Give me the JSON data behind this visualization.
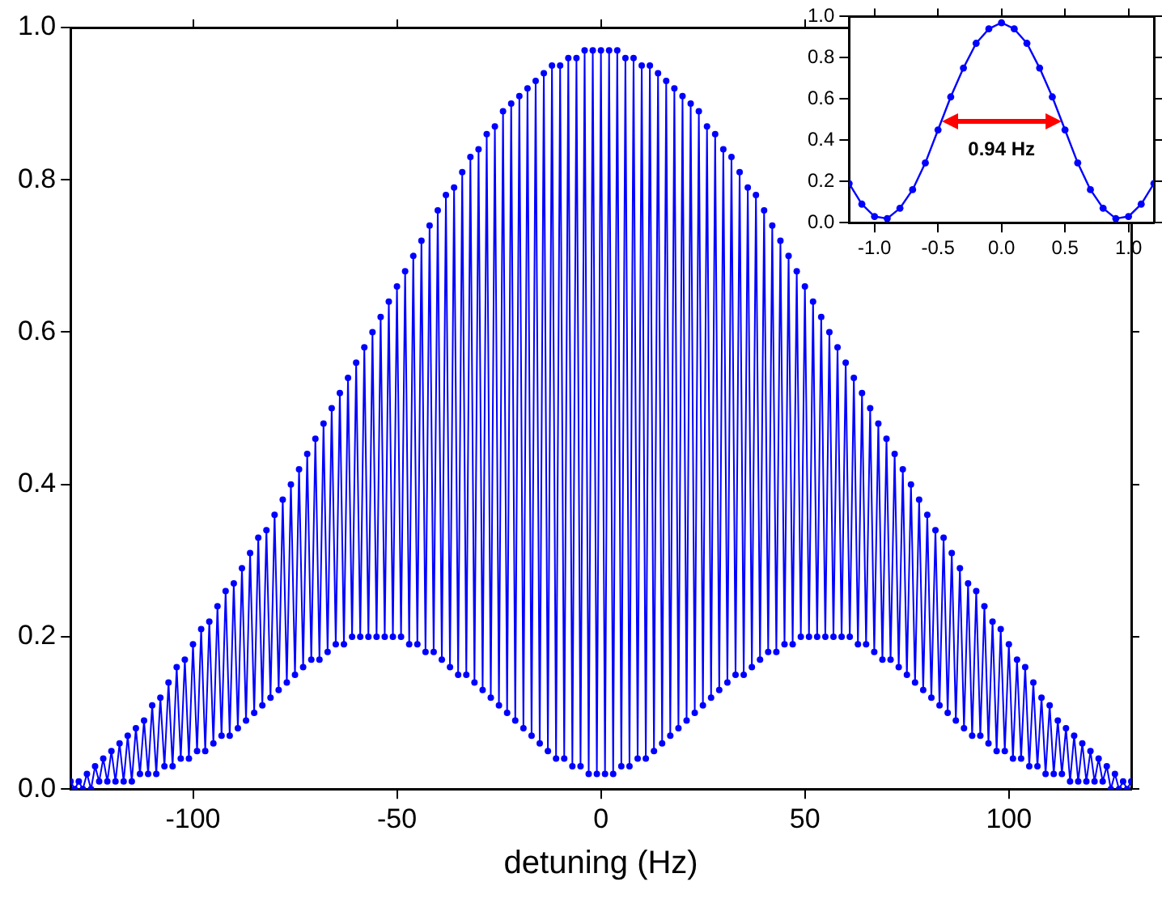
{
  "chart_data": [
    {
      "type": "line",
      "xlabel": "detuning (Hz)",
      "xlim": [
        -130,
        130
      ],
      "xticks": [
        -100,
        -50,
        0,
        50,
        100
      ],
      "ylim": [
        0,
        1
      ],
      "yticks": [
        {
          "value": 0,
          "label": "0.0"
        },
        {
          "value": 0.2,
          "label": "0.2"
        },
        {
          "value": 0.4,
          "label": "0.4"
        },
        {
          "value": 0.6,
          "label": "0.6"
        },
        {
          "value": 0.8,
          "label": "0.8"
        },
        {
          "value": 1,
          "label": "1.0"
        }
      ],
      "grid": false,
      "legend": false,
      "marker": "circle",
      "line_style": "solid",
      "series": [
        {
          "color": "#0000ff",
          "x": [
            -130,
            -129,
            -128,
            -127,
            -126,
            -125,
            -124,
            -123,
            -122,
            -121,
            -120,
            -119,
            -118,
            -117,
            -116,
            -115,
            -114,
            -113,
            -112,
            -111,
            -110,
            -109,
            -108,
            -107,
            -106,
            -105,
            -104,
            -103,
            -102,
            -101,
            -100,
            -99,
            -98,
            -97,
            -96,
            -95,
            -94,
            -93,
            -92,
            -91,
            -90,
            -89,
            -88,
            -87,
            -86,
            -85,
            -84,
            -83,
            -82,
            -81,
            -80,
            -79,
            -78,
            -77,
            -76,
            -75,
            -74,
            -73,
            -72,
            -71,
            -70,
            -69,
            -68,
            -67,
            -66,
            -65,
            -64,
            -63,
            -62,
            -61,
            -60,
            -59,
            -58,
            -57,
            -56,
            -55,
            -54,
            -53,
            -52,
            -51,
            -50,
            -49,
            -48,
            -47,
            -46,
            -45,
            -44,
            -43,
            -42,
            -41,
            -40,
            -39,
            -38,
            -37,
            -36,
            -35,
            -34,
            -33,
            -32,
            -31,
            -30,
            -29,
            -28,
            -27,
            -26,
            -25,
            -24,
            -23,
            -22,
            -21,
            -20,
            -19,
            -18,
            -17,
            -16,
            -15,
            -14,
            -13,
            -12,
            -11,
            -10,
            -9,
            -8,
            -7,
            -6,
            -5,
            -4,
            -3,
            -2,
            -1,
            0,
            1,
            2,
            3,
            4,
            5,
            6,
            7,
            8,
            9,
            10,
            11,
            12,
            13,
            14,
            15,
            16,
            17,
            18,
            19,
            20,
            21,
            22,
            23,
            24,
            25,
            26,
            27,
            28,
            29,
            30,
            31,
            32,
            33,
            34,
            35,
            36,
            37,
            38,
            39,
            40,
            41,
            42,
            43,
            44,
            45,
            46,
            47,
            48,
            49,
            50,
            51,
            52,
            53,
            54,
            55,
            56,
            57,
            58,
            59,
            60,
            61,
            62,
            63,
            64,
            65,
            66,
            67,
            68,
            69,
            70,
            71,
            72,
            73,
            74,
            75,
            76,
            77,
            78,
            79,
            80,
            81,
            82,
            83,
            84,
            85,
            86,
            87,
            88,
            89,
            90,
            91,
            92,
            93,
            94,
            95,
            96,
            97,
            98,
            99,
            100,
            101,
            102,
            103,
            104,
            105,
            106,
            107,
            108,
            109,
            110,
            111,
            112,
            113,
            114,
            115,
            116,
            117,
            118,
            119,
            120,
            121,
            122,
            123,
            124,
            125,
            126,
            127,
            128,
            129,
            130
          ],
          "values": [
            0.01,
            0.0,
            0.01,
            0.0,
            0.02,
            0.0,
            0.03,
            0.01,
            0.04,
            0.01,
            0.05,
            0.01,
            0.06,
            0.01,
            0.07,
            0.01,
            0.08,
            0.02,
            0.09,
            0.02,
            0.11,
            0.02,
            0.12,
            0.03,
            0.14,
            0.03,
            0.16,
            0.04,
            0.17,
            0.04,
            0.19,
            0.05,
            0.21,
            0.05,
            0.22,
            0.06,
            0.24,
            0.07,
            0.26,
            0.07,
            0.27,
            0.08,
            0.29,
            0.09,
            0.31,
            0.1,
            0.33,
            0.11,
            0.34,
            0.12,
            0.36,
            0.13,
            0.38,
            0.14,
            0.4,
            0.15,
            0.42,
            0.16,
            0.44,
            0.17,
            0.46,
            0.17,
            0.48,
            0.18,
            0.5,
            0.19,
            0.52,
            0.19,
            0.54,
            0.2,
            0.56,
            0.2,
            0.58,
            0.2,
            0.6,
            0.2,
            0.62,
            0.2,
            0.64,
            0.2,
            0.66,
            0.2,
            0.68,
            0.19,
            0.7,
            0.19,
            0.72,
            0.18,
            0.74,
            0.18,
            0.76,
            0.17,
            0.78,
            0.16,
            0.79,
            0.15,
            0.81,
            0.15,
            0.83,
            0.14,
            0.84,
            0.13,
            0.86,
            0.12,
            0.87,
            0.11,
            0.89,
            0.1,
            0.9,
            0.09,
            0.91,
            0.08,
            0.92,
            0.07,
            0.93,
            0.06,
            0.94,
            0.05,
            0.95,
            0.04,
            0.95,
            0.04,
            0.96,
            0.03,
            0.96,
            0.03,
            0.97,
            0.02,
            0.97,
            0.02,
            0.97,
            0.02,
            0.97,
            0.02,
            0.97,
            0.03,
            0.96,
            0.03,
            0.96,
            0.04,
            0.95,
            0.04,
            0.95,
            0.05,
            0.94,
            0.06,
            0.93,
            0.07,
            0.92,
            0.08,
            0.91,
            0.09,
            0.9,
            0.1,
            0.89,
            0.11,
            0.87,
            0.12,
            0.86,
            0.13,
            0.84,
            0.14,
            0.83,
            0.15,
            0.81,
            0.15,
            0.79,
            0.16,
            0.78,
            0.17,
            0.76,
            0.18,
            0.74,
            0.18,
            0.72,
            0.19,
            0.7,
            0.19,
            0.68,
            0.2,
            0.66,
            0.2,
            0.64,
            0.2,
            0.62,
            0.2,
            0.6,
            0.2,
            0.58,
            0.2,
            0.56,
            0.2,
            0.54,
            0.19,
            0.52,
            0.19,
            0.5,
            0.18,
            0.48,
            0.17,
            0.46,
            0.17,
            0.44,
            0.16,
            0.42,
            0.15,
            0.4,
            0.14,
            0.38,
            0.13,
            0.36,
            0.12,
            0.34,
            0.11,
            0.33,
            0.1,
            0.31,
            0.09,
            0.29,
            0.08,
            0.27,
            0.07,
            0.26,
            0.07,
            0.24,
            0.06,
            0.22,
            0.05,
            0.21,
            0.05,
            0.19,
            0.04,
            0.17,
            0.04,
            0.16,
            0.03,
            0.14,
            0.03,
            0.12,
            0.02,
            0.11,
            0.02,
            0.09,
            0.02,
            0.08,
            0.01,
            0.07,
            0.01,
            0.06,
            0.01,
            0.05,
            0.01,
            0.04,
            0.01,
            0.03,
            0.0,
            0.02,
            0.0,
            0.01,
            0.0,
            0.01
          ]
        }
      ]
    },
    {
      "type": "line",
      "xlim": [
        -1.2,
        1.2
      ],
      "xticks": [
        {
          "value": -1,
          "label": "-1.0"
        },
        {
          "value": -0.5,
          "label": "-0.5"
        },
        {
          "value": 0,
          "label": "0.0"
        },
        {
          "value": 0.5,
          "label": "0.5"
        },
        {
          "value": 1,
          "label": "1.0"
        }
      ],
      "ylim": [
        0,
        1
      ],
      "yticks": [
        {
          "value": 0,
          "label": "0.0"
        },
        {
          "value": 0.2,
          "label": "0.2"
        },
        {
          "value": 0.4,
          "label": "0.4"
        },
        {
          "value": 0.6,
          "label": "0.6"
        },
        {
          "value": 0.8,
          "label": "0.8"
        },
        {
          "value": 1,
          "label": "1.0"
        }
      ],
      "grid": false,
      "legend": false,
      "marker": "circle",
      "line_style": "solid",
      "annotations": [
        "0.94 Hz"
      ],
      "series": [
        {
          "color": "#0000ff",
          "x": [
            -1.2,
            -1.1,
            -1.0,
            -0.9,
            -0.8,
            -0.7,
            -0.6,
            -0.5,
            -0.4,
            -0.3,
            -0.2,
            -0.1,
            0,
            0.1,
            0.2,
            0.3,
            0.4,
            0.5,
            0.6,
            0.7,
            0.8,
            0.9,
            1.0,
            1.1,
            1.2
          ],
          "values": [
            0.19,
            0.09,
            0.03,
            0.02,
            0.07,
            0.16,
            0.29,
            0.45,
            0.61,
            0.75,
            0.87,
            0.94,
            0.97,
            0.94,
            0.87,
            0.75,
            0.61,
            0.45,
            0.29,
            0.16,
            0.07,
            0.02,
            0.03,
            0.09,
            0.19
          ]
        }
      ]
    }
  ]
}
